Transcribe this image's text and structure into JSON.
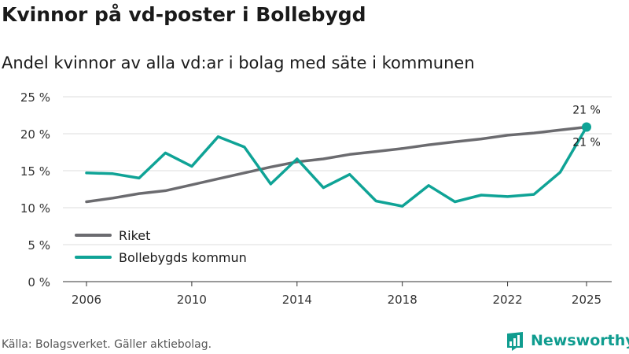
{
  "page": {
    "title": "Kvinnor på vd-poster i Bollebygd",
    "subtitle": "Andel kvinnor av alla vd:ar i bolag med säte i kommunen",
    "source": "Källa: Bolagsverket. Gäller aktiebolag.",
    "brand": "Newsworthy"
  },
  "chart_data": {
    "type": "line",
    "title": "Kvinnor på vd-poster i Bollebygd",
    "subtitle": "Andel kvinnor av alla vd:ar i bolag med säte i kommunen",
    "xlabel": "",
    "ylabel": "",
    "x": [
      2006,
      2007,
      2008,
      2009,
      2010,
      2011,
      2012,
      2013,
      2014,
      2015,
      2016,
      2017,
      2018,
      2019,
      2020,
      2021,
      2022,
      2023,
      2024,
      2025
    ],
    "x_ticks": [
      2006,
      2010,
      2014,
      2018,
      2022,
      2025
    ],
    "x_tick_labels": [
      "2006",
      "2010",
      "2014",
      "2018",
      "2022",
      "2025"
    ],
    "ylim": [
      0,
      25
    ],
    "y_ticks": [
      0,
      5,
      10,
      15,
      20,
      25
    ],
    "y_tick_labels": [
      "0 %",
      "5 %",
      "10 %",
      "15 %",
      "20 %",
      "25 %"
    ],
    "grid": true,
    "legend_position": "bottom-left",
    "series": [
      {
        "name": "Riket",
        "color": "#6b6b6f",
        "values": [
          10.8,
          11.3,
          11.9,
          12.3,
          13.1,
          13.9,
          14.7,
          15.5,
          16.2,
          16.6,
          17.2,
          17.6,
          18.0,
          18.5,
          18.9,
          19.3,
          19.8,
          20.1,
          20.5,
          20.9
        ],
        "end_label": "21 %"
      },
      {
        "name": "Bollebygds kommun",
        "color": "#0fa396",
        "values": [
          14.7,
          14.6,
          14.0,
          17.4,
          15.6,
          19.6,
          18.2,
          13.2,
          16.6,
          12.7,
          14.5,
          10.9,
          10.2,
          13.0,
          10.8,
          11.7,
          11.5,
          11.8,
          14.8,
          20.9
        ],
        "end_label": "21 %"
      }
    ]
  }
}
